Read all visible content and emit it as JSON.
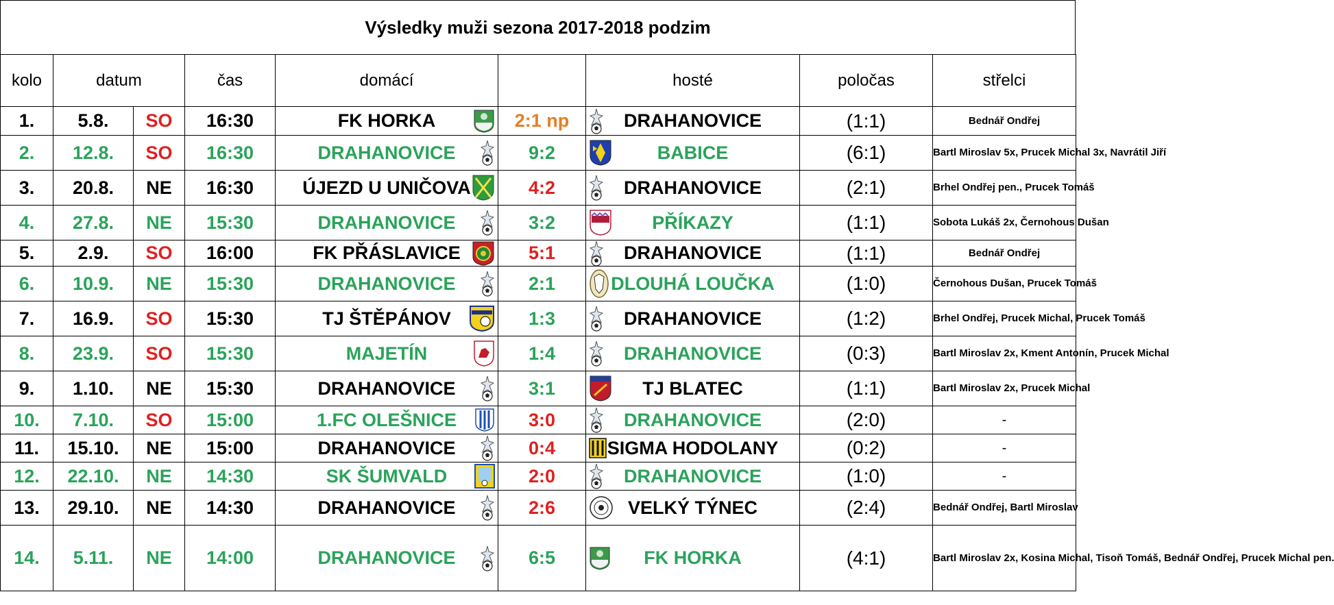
{
  "title": "Výsledky muži sezona 2017-2018 podzim",
  "headers": {
    "kolo": "kolo",
    "datum": "datum",
    "cas": "čas",
    "domaci": "domácí",
    "score": "",
    "hoste": "hosté",
    "polocas": "poločas",
    "strelci": "střelci"
  },
  "colors": {
    "green": "#2aa35a",
    "red": "#e02020",
    "orange": "#e67e22",
    "black": "#000000"
  },
  "rows": [
    {
      "kolo": "1.",
      "datum": "5.8.",
      "den": "SO",
      "cas": "16:30",
      "home": "FK HORKA",
      "home_crest": "horka-crest-icon",
      "score": "2:1 np",
      "away": "DRAHANOVICE",
      "away_crest": "drahanovice-crest-icon",
      "polocas": "(1:1)",
      "strelci": "Bednář Ondřej",
      "row_color": "black",
      "score_color": "orange",
      "den_color": "red"
    },
    {
      "kolo": "2.",
      "datum": "12.8.",
      "den": "SO",
      "cas": "16:30",
      "home": "DRAHANOVICE",
      "home_crest": "drahanovice-crest-icon",
      "score": "9:2",
      "away": "BABICE",
      "away_crest": "babice-crest-icon",
      "polocas": "(6:1)",
      "strelci": "Bartl Miroslav 5x, Prucek Michal 3x, Navrátil Jiří",
      "row_color": "green",
      "score_color": "green",
      "den_color": "red"
    },
    {
      "kolo": "3.",
      "datum": "20.8.",
      "den": "NE",
      "cas": "16:30",
      "home": "ÚJEZD U UNIČOVA",
      "home_crest": "ujezd-crest-icon",
      "score": "4:2",
      "away": "DRAHANOVICE",
      "away_crest": "drahanovice-crest-icon",
      "polocas": "(2:1)",
      "strelci": "Brhel Ondřej pen., Prucek Tomáš",
      "row_color": "black",
      "score_color": "red",
      "den_color": "black"
    },
    {
      "kolo": "4.",
      "datum": "27.8.",
      "den": "NE",
      "cas": "15:30",
      "home": "DRAHANOVICE",
      "home_crest": "drahanovice-crest-icon",
      "score": "3:2",
      "away": "PŘÍKAZY",
      "away_crest": "prikazy-crest-icon",
      "polocas": "(1:1)",
      "strelci": "Sobota Lukáš 2x, Černohous Dušan",
      "row_color": "green",
      "score_color": "green",
      "den_color": "green"
    },
    {
      "kolo": "5.",
      "datum": "2.9.",
      "den": "SO",
      "cas": "16:00",
      "home": "FK PŘÁSLAVICE",
      "home_crest": "praslavice-crest-icon",
      "score": "5:1",
      "away": "DRAHANOVICE",
      "away_crest": "drahanovice-crest-icon",
      "polocas": "(1:1)",
      "strelci": "Bednář Ondřej",
      "row_color": "black",
      "score_color": "red",
      "den_color": "red"
    },
    {
      "kolo": "6.",
      "datum": "10.9.",
      "den": "NE",
      "cas": "15:30",
      "home": "DRAHANOVICE",
      "home_crest": "drahanovice-crest-icon",
      "score": "2:1",
      "away": "DLOUHÁ LOUČKA",
      "away_crest": "dlouha-loucka-crest-icon",
      "polocas": "(1:0)",
      "strelci": "Černohous Dušan, Prucek Tomáš",
      "row_color": "green",
      "score_color": "green",
      "den_color": "green"
    },
    {
      "kolo": "7.",
      "datum": "16.9.",
      "den": "SO",
      "cas": "15:30",
      "home": "TJ ŠTĚPÁNOV",
      "home_crest": "stepanov-crest-icon",
      "score": "1:3",
      "away": "DRAHANOVICE",
      "away_crest": "drahanovice-crest-icon",
      "polocas": "(1:2)",
      "strelci": "Brhel Ondřej, Prucek Michal, Prucek Tomáš",
      "row_color": "black",
      "score_color": "green",
      "den_color": "red"
    },
    {
      "kolo": "8.",
      "datum": "23.9.",
      "den": "SO",
      "cas": "15:30",
      "home": "MAJETÍN",
      "home_crest": "majetin-crest-icon",
      "score": "1:4",
      "away": "DRAHANOVICE",
      "away_crest": "drahanovice-crest-icon",
      "polocas": "(0:3)",
      "strelci": "Bartl Miroslav 2x, Kment Antonín, Prucek Michal",
      "row_color": "green",
      "score_color": "green",
      "den_color": "red"
    },
    {
      "kolo": "9.",
      "datum": "1.10.",
      "den": "NE",
      "cas": "15:30",
      "home": "DRAHANOVICE",
      "home_crest": "drahanovice-crest-icon",
      "score": "3:1",
      "away": "TJ BLATEC",
      "away_crest": "blatec-crest-icon",
      "polocas": "(1:1)",
      "strelci": "Bartl Miroslav 2x, Prucek Michal",
      "row_color": "black",
      "score_color": "green",
      "den_color": "black"
    },
    {
      "kolo": "10.",
      "datum": "7.10.",
      "den": "SO",
      "cas": "15:00",
      "home": "1.FC OLEŠNICE",
      "home_crest": "olesnice-crest-icon",
      "score": "3:0",
      "away": "DRAHANOVICE",
      "away_crest": "drahanovice-crest-icon",
      "polocas": "(2:0)",
      "strelci": "-",
      "row_color": "green",
      "score_color": "red",
      "den_color": "red"
    },
    {
      "kolo": "11.",
      "datum": "15.10.",
      "den": "NE",
      "cas": "15:00",
      "home": "DRAHANOVICE",
      "home_crest": "drahanovice-crest-icon",
      "score": "0:4",
      "away": "SIGMA HODOLANY",
      "away_crest": "hodolany-crest-icon",
      "polocas": "(0:2)",
      "strelci": "-",
      "row_color": "black",
      "score_color": "red",
      "den_color": "black"
    },
    {
      "kolo": "12.",
      "datum": "22.10.",
      "den": "NE",
      "cas": "14:30",
      "home": "SK ŠUMVALD",
      "home_crest": "sumvald-crest-icon",
      "score": "2:0",
      "away": "DRAHANOVICE",
      "away_crest": "drahanovice-crest-icon",
      "polocas": "(1:0)",
      "strelci": "-",
      "row_color": "green",
      "score_color": "red",
      "den_color": "green"
    },
    {
      "kolo": "13.",
      "datum": "29.10.",
      "den": "NE",
      "cas": "14:30",
      "home": "DRAHANOVICE",
      "home_crest": "drahanovice-crest-icon",
      "score": "2:6",
      "away": "VELKÝ TÝNEC",
      "away_crest": "velky-tynec-crest-icon",
      "polocas": "(2:4)",
      "strelci": "Bednář Ondřej, Bartl Miroslav",
      "row_color": "black",
      "score_color": "red",
      "den_color": "black"
    },
    {
      "kolo": "14.",
      "datum": "5.11.",
      "den": "NE",
      "cas": "14:00",
      "home": "DRAHANOVICE",
      "home_crest": "drahanovice-crest-icon",
      "score": "6:5",
      "away": "FK HORKA",
      "away_crest": "horka-crest-icon",
      "polocas": "(4:1)",
      "strelci": "Bartl Miroslav 2x, Kosina Michal, Tisoň Tomáš, Bednář Ondřej, Prucek Michal pen.",
      "row_color": "green",
      "score_color": "green",
      "den_color": "green"
    }
  ]
}
